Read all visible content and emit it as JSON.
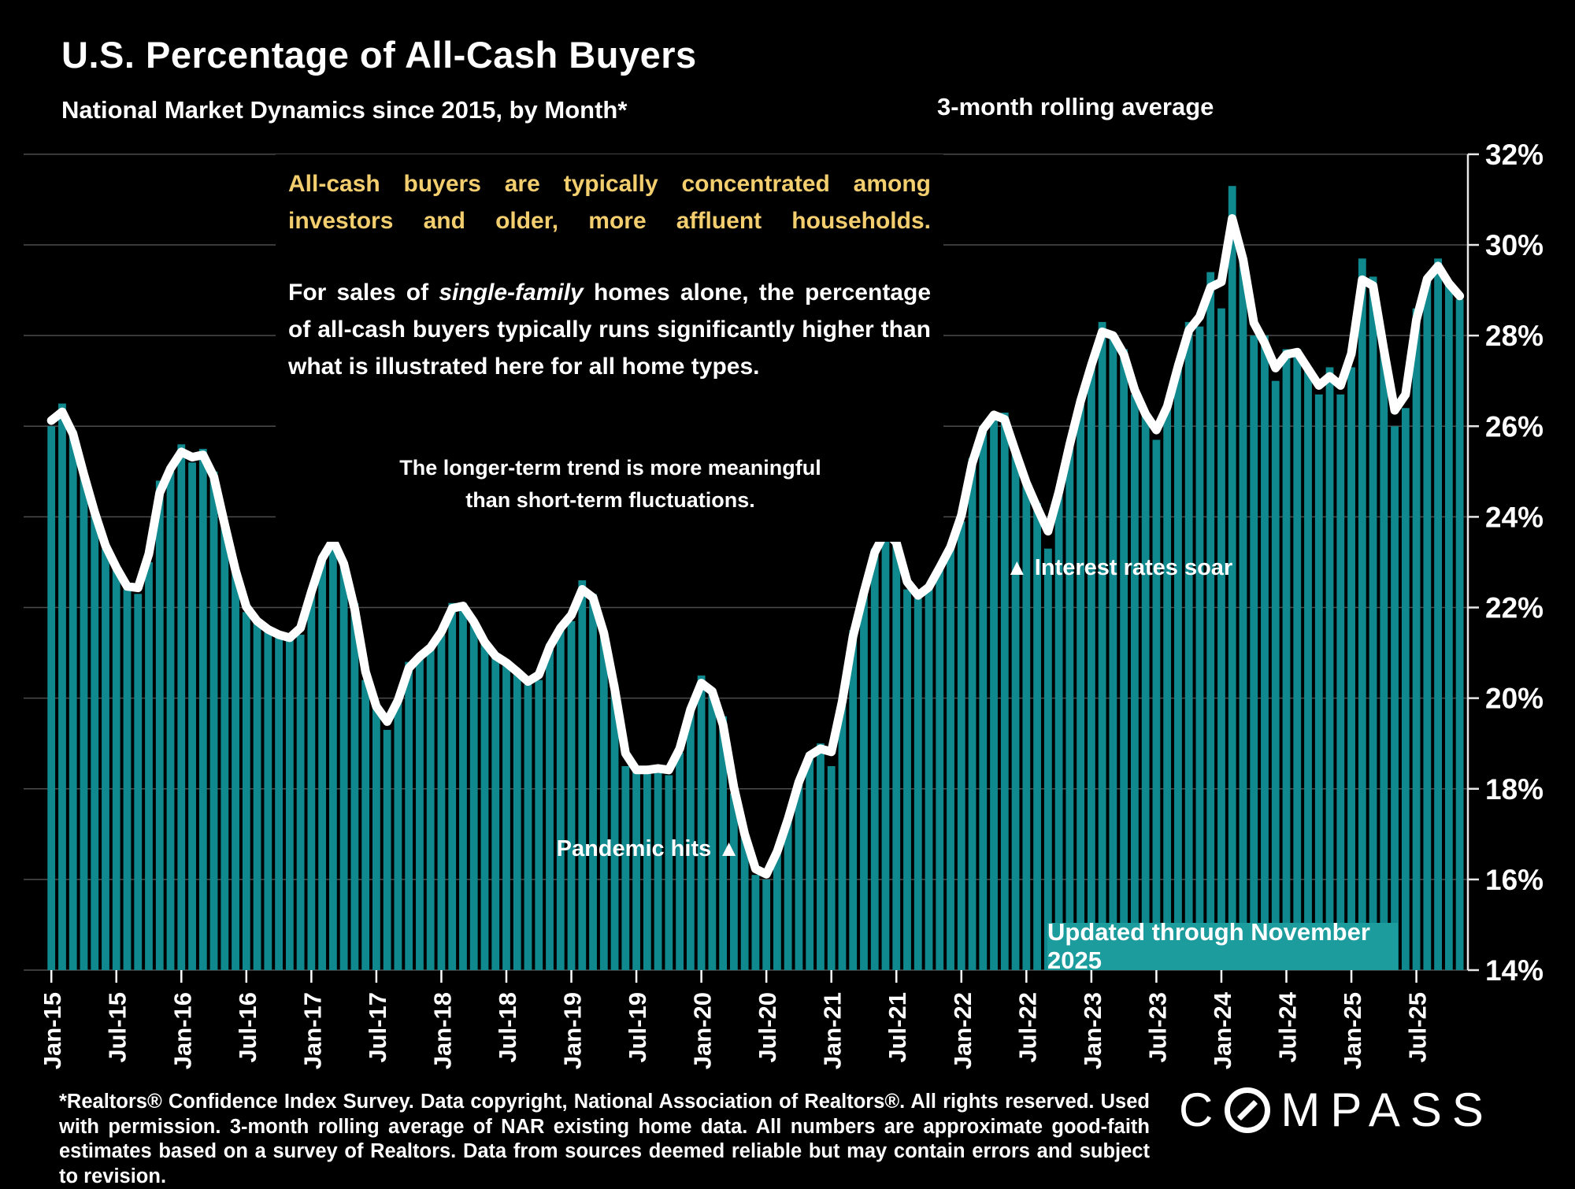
{
  "header": {
    "title": "U.S. Percentage of All-Cash Buyers",
    "subtitle": "National Market Dynamics since 2015, by Month*",
    "legend_label": "3-month rolling average"
  },
  "callouts": {
    "highlight": "All-cash buyers are typically concentrated among investors and older, more affluent households.",
    "body_prefix": "For sales of ",
    "body_italic": "single-family",
    "body_suffix": " homes alone, the percentage of all-cash buyers typically runs significantly higher than what is illustrated here for all home types.",
    "trend_note_line1": "The longer-term trend is more meaningful",
    "trend_note_line2": "than short-term fluctuations."
  },
  "annotations": {
    "pandemic": "Pandemic hits ▲",
    "rates": "▲ Interest rates soar",
    "updated_badge": "Updated through November 2025"
  },
  "footer": {
    "disclaimer": "*Realtors® Confidence Index Survey. Data copyright, National Association of Realtors®. All rights reserved. Used with permission. 3-month rolling average of NAR existing home data. All numbers are approximate good-faith estimates based on a survey of Realtors. Data from sources deemed reliable but may contain errors and subject to revision.",
    "brand_c": "C",
    "brand_rest": "MPASS"
  },
  "chart_data": {
    "type": "bar",
    "title": "U.S. Percentage of All-Cash Buyers",
    "x_start": "Jan-2015",
    "x_end": "Nov-2025",
    "ylim": [
      14,
      32
    ],
    "grid": true,
    "y_tick_values": [
      32,
      30,
      28,
      26,
      24,
      22,
      20,
      18,
      16,
      14
    ],
    "y_tick_labels": [
      "32%",
      "30%",
      "28%",
      "26%",
      "24%",
      "22%",
      "20%",
      "18%",
      "16%",
      "14%"
    ],
    "x_tick_every_months": 6,
    "x_tick_labels": [
      "Jan-15",
      "Jul-15",
      "Jan-16",
      "Jul-16",
      "Jan-17",
      "Jul-17",
      "Jan-18",
      "Jul-18",
      "Jan-19",
      "Jul-19",
      "Jan-20",
      "Jul-20",
      "Jan-21",
      "Jul-21",
      "Jan-22",
      "Jul-22",
      "Jan-23",
      "Jul-23",
      "Jan-24",
      "Jul-24",
      "Jan-25",
      "Jul-25"
    ],
    "series": [
      {
        "name": "Percent of all-cash buyers (monthly)",
        "values": [
          26.0,
          26.5,
          25.9,
          24.9,
          24.1,
          23.3,
          22.9,
          22.4,
          22.3,
          23.0,
          24.8,
          25.0,
          25.6,
          25.2,
          25.5,
          25.0,
          23.8,
          22.8,
          21.9,
          21.7,
          21.5,
          21.4,
          21.3,
          21.4,
          22.4,
          23.1,
          23.7,
          23.0,
          22.1,
          20.4,
          19.8,
          19.3,
          19.9,
          20.8,
          20.9,
          21.1,
          21.4,
          22.1,
          22.1,
          21.7,
          21.2,
          20.9,
          20.8,
          20.6,
          20.3,
          20.4,
          21.2,
          21.6,
          21.7,
          22.6,
          22.3,
          21.5,
          20.3,
          18.5,
          18.4,
          18.4,
          18.5,
          18.3,
          18.8,
          19.8,
          20.5,
          20.2,
          19.6,
          17.9,
          17.0,
          16.1,
          16.0,
          16.6,
          17.3,
          18.2,
          18.8,
          19.0,
          18.5,
          19.9,
          21.5,
          22.3,
          23.3,
          23.8,
          23.6,
          22.4,
          22.2,
          22.4,
          22.9,
          23.3,
          23.9,
          25.3,
          26.0,
          26.3,
          26.3,
          25.4,
          24.7,
          24.3,
          23.3,
          24.6,
          25.6,
          26.6,
          27.3,
          28.3,
          28.0,
          27.7,
          26.7,
          26.3,
          25.7,
          26.4,
          27.3,
          28.3,
          28.2,
          29.4,
          28.6,
          31.3,
          29.7,
          28.0,
          28.0,
          27.0,
          27.7,
          27.7,
          27.3,
          26.7,
          27.3,
          26.7,
          27.3,
          29.7,
          29.3,
          27.7,
          26.0,
          26.4,
          28.6,
          29.3,
          29.7,
          29.1,
          28.8
        ]
      },
      {
        "name": "3-month rolling average",
        "derived_from_bars": true
      }
    ],
    "legend_position": "top-right",
    "colors": {
      "bar": "#0F898E",
      "line": "#FFFFFF",
      "grid": "#4D4D4D",
      "axis": "#E8E8E8",
      "highlight_text": "#F3CE6E",
      "badge": "#1C9C9D",
      "background": "#000000"
    }
  }
}
